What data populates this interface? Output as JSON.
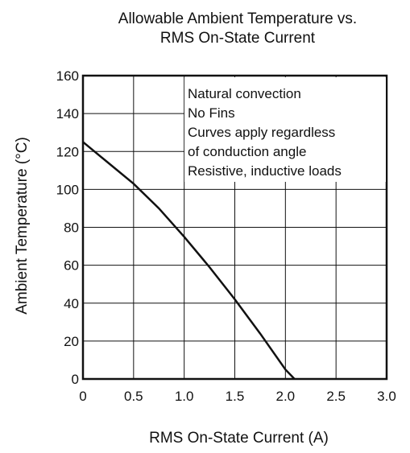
{
  "chart_data": {
    "type": "line",
    "title_lines": [
      "Allowable Ambient Temperature vs.",
      "RMS On-State Current"
    ],
    "xlabel": "RMS On-State Current  (A)",
    "ylabel": "Ambient Temperature  (°C)",
    "xlim": [
      0,
      3.0
    ],
    "ylim": [
      0,
      160
    ],
    "x_ticks": [
      "0",
      "0.5",
      "1.0",
      "1.5",
      "2.0",
      "2.5",
      "3.0"
    ],
    "y_ticks": [
      "0",
      "20",
      "40",
      "60",
      "80",
      "100",
      "120",
      "140",
      "160"
    ],
    "grid": true,
    "annotations": [
      "Natural convection",
      "No Fins",
      "Curves apply regardless",
      "of conduction angle",
      "Resistive, inductive loads"
    ],
    "series": [
      {
        "x": [
          0,
          0.25,
          0.5,
          0.75,
          1.0,
          1.25,
          1.5,
          1.75,
          2.0,
          2.09
        ],
        "y": [
          125,
          114,
          103,
          90,
          75,
          59,
          42,
          24,
          5,
          0
        ]
      }
    ]
  }
}
